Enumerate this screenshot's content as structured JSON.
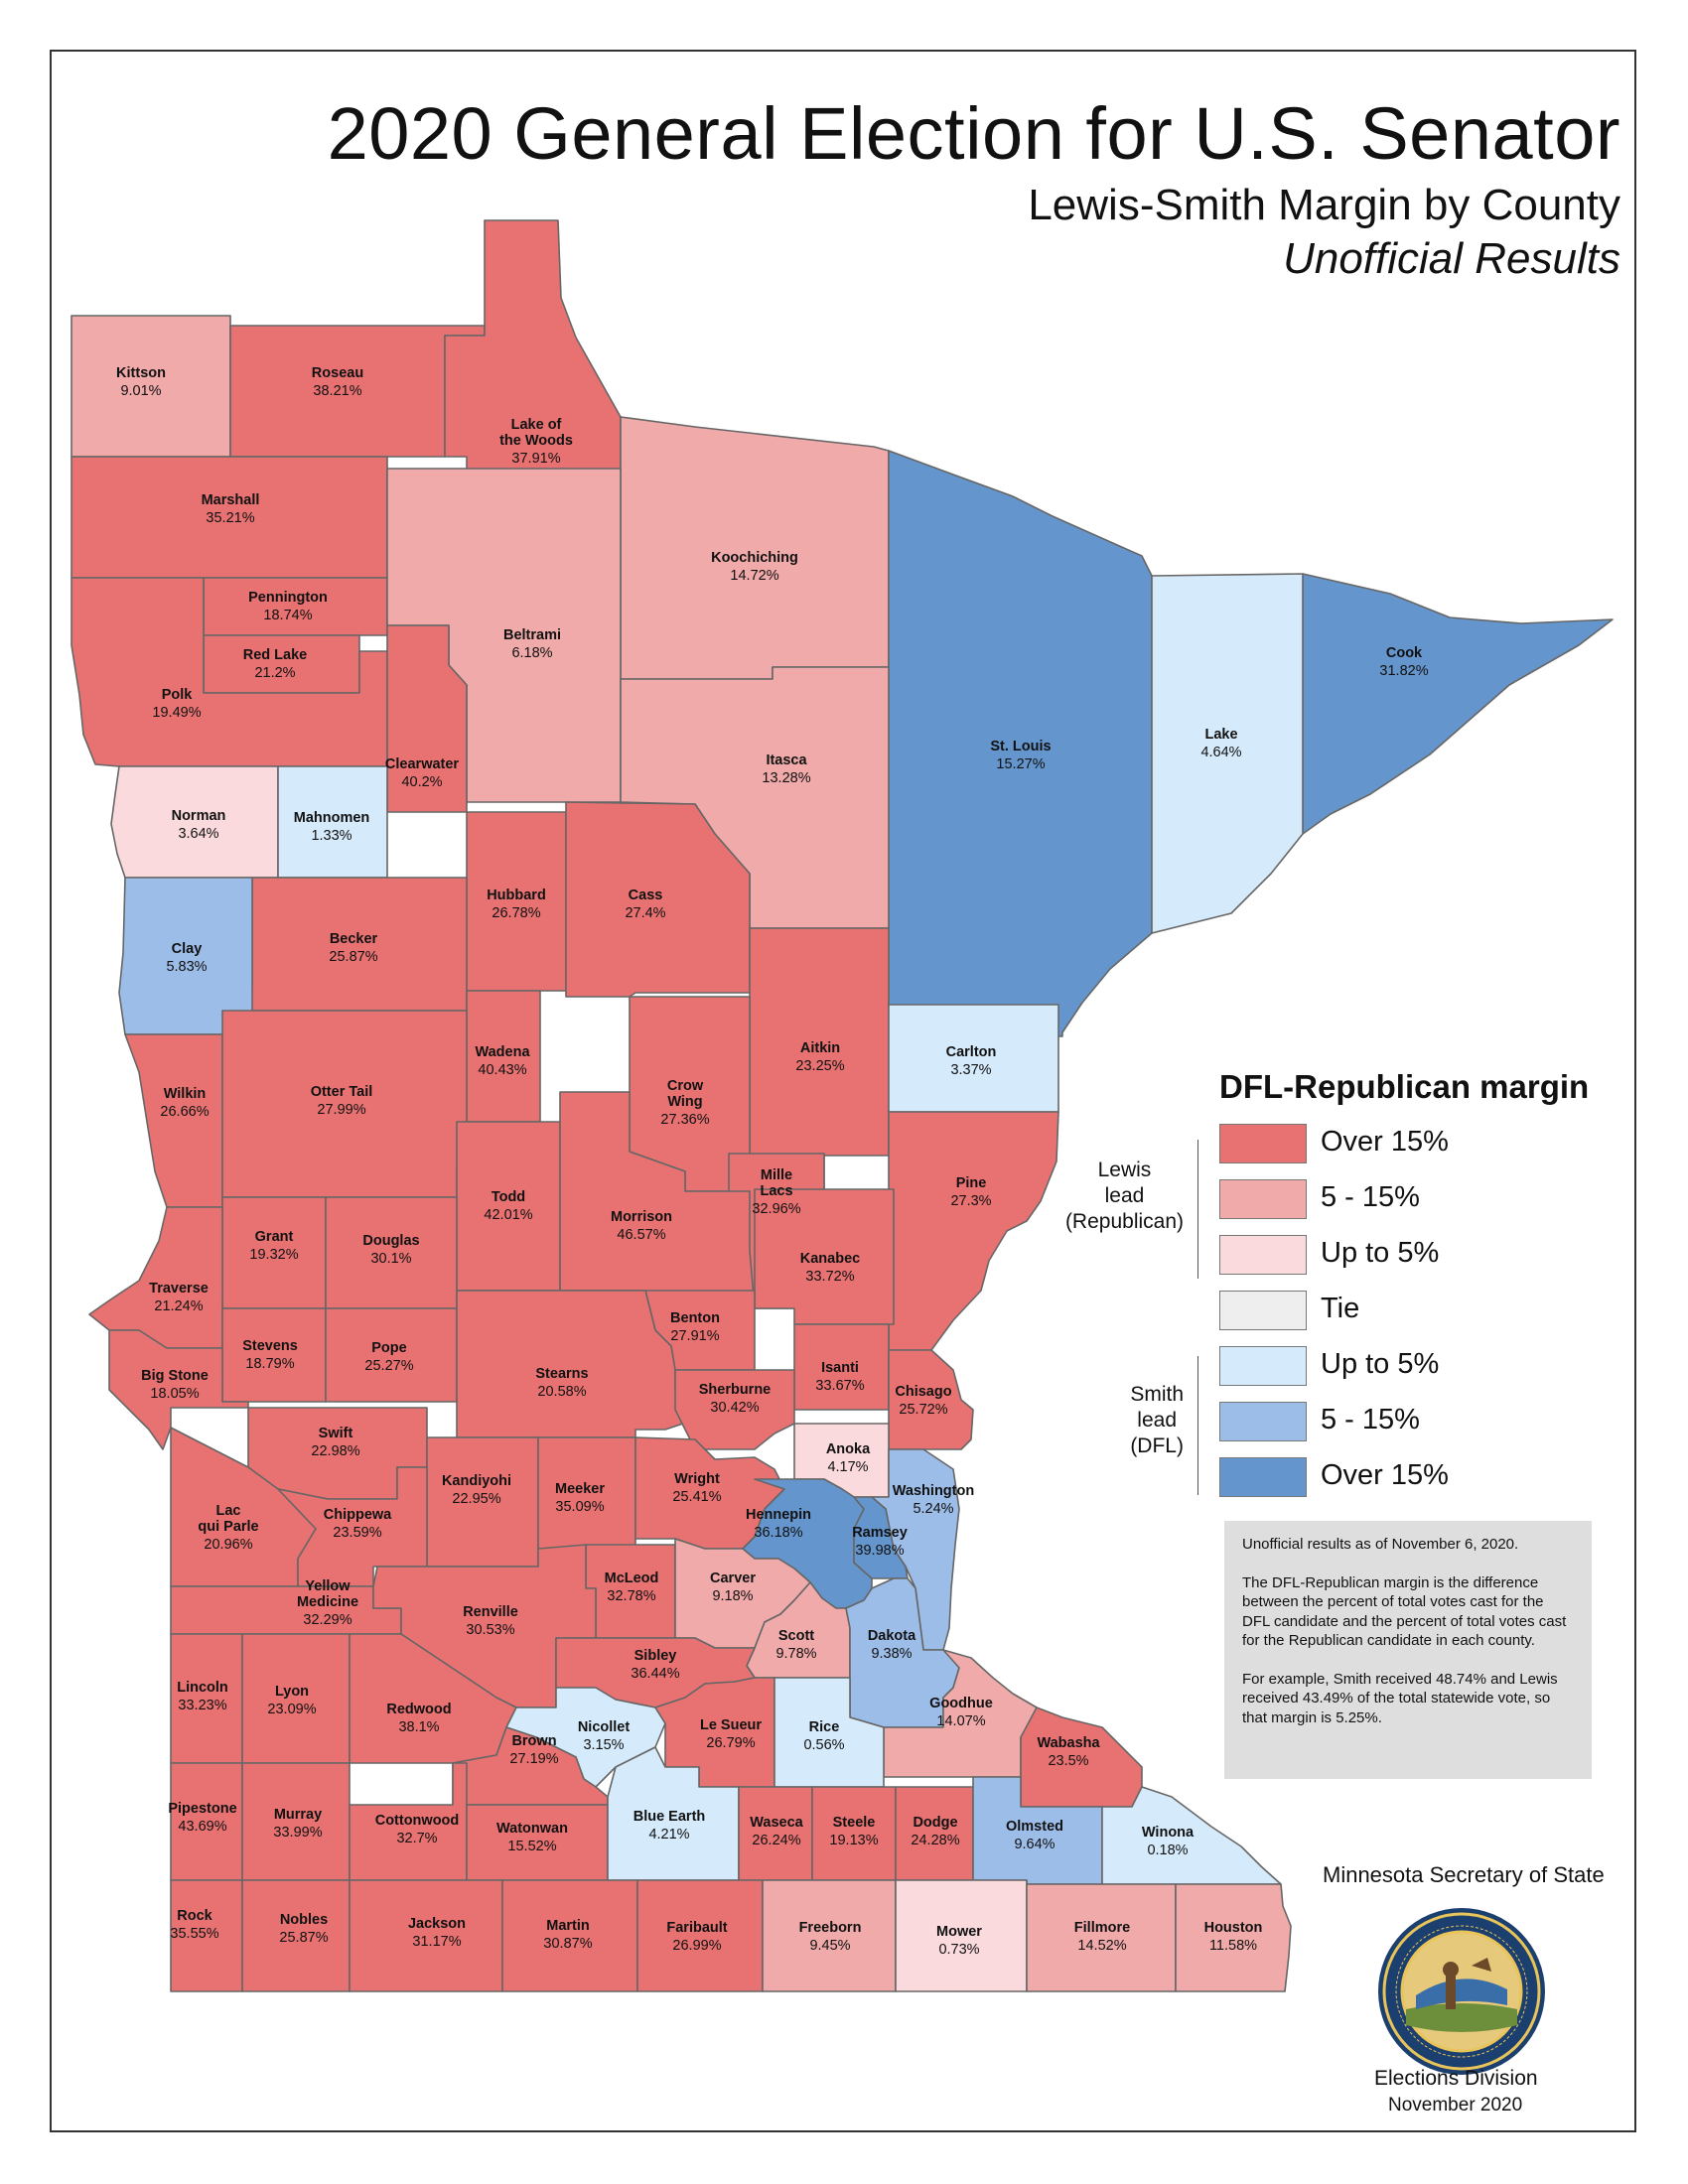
{
  "header": {
    "title": "2020 General Election for U.S. Senator",
    "subtitle": "Lewis-Smith Margin by County",
    "subtitle2": "Unofficial Results"
  },
  "colors": {
    "rep_over15": "#e87272",
    "rep_5_15": "#f0aaaa",
    "rep_upto5": "#fadadd",
    "tie": "#eeeeee",
    "dem_upto5": "#d5eafb",
    "dem_5_15": "#9dbde9",
    "dem_over15": "#6495cc"
  },
  "legend": {
    "title": "DFL-Republican margin",
    "rep_group": [
      "Lewis",
      "lead",
      "(Republican)"
    ],
    "dem_group": [
      "Smith",
      "lead",
      "(DFL)"
    ],
    "items": [
      {
        "label": "Over 15%",
        "color": "#e87272"
      },
      {
        "label": "5 - 15%",
        "color": "#f0aaaa"
      },
      {
        "label": "Up to 5%",
        "color": "#fadadd"
      },
      {
        "label": "Tie",
        "color": "#eeeeee"
      },
      {
        "label": "Up to 5%",
        "color": "#d5eafb"
      },
      {
        "label": "5 - 15%",
        "color": "#9dbde9"
      },
      {
        "label": "Over 15%",
        "color": "#6495cc"
      }
    ]
  },
  "note": {
    "p1": "Unofficial results as of November 6, 2020.",
    "p2": "The DFL-Republican margin is the difference between the percent of total votes cast for the DFL candidate and the percent of total votes cast for the Republican candidate in each county.",
    "p3": "For example, Smith received 48.74% and Lewis received 43.49% of the total statewide vote, so that margin is 5.25%."
  },
  "footer": {
    "agency": "Minnesota Secretary of State",
    "division": "Elections Division",
    "date": "November 2020",
    "seal_text": "THE GREAT SEAL OF THE STATE OF MINNESOTA",
    "seal_motto": "L'ETOILE DU NORD",
    "seal_year": "1858"
  },
  "counties": [
    {
      "name": "Kittson",
      "margin": "9.01%",
      "lead": "Republican",
      "band": "rep_5_15"
    },
    {
      "name": "Roseau",
      "margin": "38.21%",
      "lead": "Republican",
      "band": "rep_over15"
    },
    {
      "name": "Lake of the Woods",
      "label_lines": [
        "Lake of",
        "the Woods"
      ],
      "margin": "37.91%",
      "lead": "Republican",
      "band": "rep_over15"
    },
    {
      "name": "Marshall",
      "margin": "35.21%",
      "lead": "Republican",
      "band": "rep_over15"
    },
    {
      "name": "Koochiching",
      "margin": "14.72%",
      "lead": "Republican",
      "band": "rep_5_15"
    },
    {
      "name": "Pennington",
      "margin": "18.74%",
      "lead": "Republican",
      "band": "rep_over15"
    },
    {
      "name": "Beltrami",
      "margin": "6.18%",
      "lead": "Republican",
      "band": "rep_5_15"
    },
    {
      "name": "Red Lake",
      "margin": "21.2%",
      "lead": "Republican",
      "band": "rep_over15"
    },
    {
      "name": "Cook",
      "margin": "31.82%",
      "lead": "DFL",
      "band": "dem_over15"
    },
    {
      "name": "Polk",
      "margin": "19.49%",
      "lead": "Republican",
      "band": "rep_over15"
    },
    {
      "name": "St. Louis",
      "margin": "15.27%",
      "lead": "DFL",
      "band": "dem_over15"
    },
    {
      "name": "Lake",
      "margin": "4.64%",
      "lead": "DFL",
      "band": "dem_upto5"
    },
    {
      "name": "Itasca",
      "margin": "13.28%",
      "lead": "Republican",
      "band": "rep_5_15"
    },
    {
      "name": "Clearwater",
      "margin": "40.2%",
      "lead": "Republican",
      "band": "rep_over15"
    },
    {
      "name": "Norman",
      "margin": "3.64%",
      "lead": "Republican",
      "band": "rep_upto5"
    },
    {
      "name": "Mahnomen",
      "margin": "1.33%",
      "lead": "DFL",
      "band": "dem_upto5"
    },
    {
      "name": "Hubbard",
      "margin": "26.78%",
      "lead": "Republican",
      "band": "rep_over15"
    },
    {
      "name": "Cass",
      "margin": "27.4%",
      "lead": "Republican",
      "band": "rep_over15"
    },
    {
      "name": "Becker",
      "margin": "25.87%",
      "lead": "Republican",
      "band": "rep_over15"
    },
    {
      "name": "Clay",
      "margin": "5.83%",
      "lead": "DFL",
      "band": "dem_5_15"
    },
    {
      "name": "Aitkin",
      "margin": "23.25%",
      "lead": "Republican",
      "band": "rep_over15"
    },
    {
      "name": "Wadena",
      "margin": "40.43%",
      "lead": "Republican",
      "band": "rep_over15"
    },
    {
      "name": "Carlton",
      "margin": "3.37%",
      "lead": "DFL",
      "band": "dem_upto5"
    },
    {
      "name": "Crow Wing",
      "label_lines": [
        "Crow",
        "Wing"
      ],
      "margin": "27.36%",
      "lead": "Republican",
      "band": "rep_over15"
    },
    {
      "name": "Wilkin",
      "margin": "26.66%",
      "lead": "Republican",
      "band": "rep_over15"
    },
    {
      "name": "Otter Tail",
      "margin": "27.99%",
      "lead": "Republican",
      "band": "rep_over15"
    },
    {
      "name": "Mille Lacs",
      "label_lines": [
        "Mille",
        "Lacs"
      ],
      "margin": "32.96%",
      "lead": "Republican",
      "band": "rep_over15"
    },
    {
      "name": "Pine",
      "margin": "27.3%",
      "lead": "Republican",
      "band": "rep_over15"
    },
    {
      "name": "Todd",
      "margin": "42.01%",
      "lead": "Republican",
      "band": "rep_over15"
    },
    {
      "name": "Morrison",
      "margin": "46.57%",
      "lead": "Republican",
      "band": "rep_over15"
    },
    {
      "name": "Grant",
      "margin": "19.32%",
      "lead": "Republican",
      "band": "rep_over15"
    },
    {
      "name": "Douglas",
      "margin": "30.1%",
      "lead": "Republican",
      "band": "rep_over15"
    },
    {
      "name": "Kanabec",
      "margin": "33.72%",
      "lead": "Republican",
      "band": "rep_over15"
    },
    {
      "name": "Traverse",
      "margin": "21.24%",
      "lead": "Republican",
      "band": "rep_over15"
    },
    {
      "name": "Benton",
      "margin": "27.91%",
      "lead": "Republican",
      "band": "rep_over15"
    },
    {
      "name": "Stevens",
      "margin": "18.79%",
      "lead": "Republican",
      "band": "rep_over15"
    },
    {
      "name": "Pope",
      "margin": "25.27%",
      "lead": "Republican",
      "band": "rep_over15"
    },
    {
      "name": "Stearns",
      "margin": "20.58%",
      "lead": "Republican",
      "band": "rep_over15"
    },
    {
      "name": "Isanti",
      "margin": "33.67%",
      "lead": "Republican",
      "band": "rep_over15"
    },
    {
      "name": "Big Stone",
      "margin": "18.05%",
      "lead": "Republican",
      "band": "rep_over15"
    },
    {
      "name": "Sherburne",
      "margin": "30.42%",
      "lead": "Republican",
      "band": "rep_over15"
    },
    {
      "name": "Chisago",
      "margin": "25.72%",
      "lead": "Republican",
      "band": "rep_over15"
    },
    {
      "name": "Swift",
      "margin": "22.98%",
      "lead": "Republican",
      "band": "rep_over15"
    },
    {
      "name": "Anoka",
      "margin": "4.17%",
      "lead": "Republican",
      "band": "rep_upto5"
    },
    {
      "name": "Kandiyohi",
      "margin": "22.95%",
      "lead": "Republican",
      "band": "rep_over15"
    },
    {
      "name": "Meeker",
      "margin": "35.09%",
      "lead": "Republican",
      "band": "rep_over15"
    },
    {
      "name": "Wright",
      "margin": "25.41%",
      "lead": "Republican",
      "band": "rep_over15"
    },
    {
      "name": "Washington",
      "margin": "5.24%",
      "lead": "DFL",
      "band": "dem_5_15"
    },
    {
      "name": "Lac qui Parle",
      "label_lines": [
        "Lac",
        "qui Parle"
      ],
      "margin": "20.96%",
      "lead": "Republican",
      "band": "rep_over15"
    },
    {
      "name": "Chippewa",
      "margin": "23.59%",
      "lead": "Republican",
      "band": "rep_over15"
    },
    {
      "name": "Hennepin",
      "margin": "36.18%",
      "lead": "DFL",
      "band": "dem_over15"
    },
    {
      "name": "Ramsey",
      "margin": "39.98%",
      "lead": "DFL",
      "band": "dem_over15"
    },
    {
      "name": "McLeod",
      "margin": "32.78%",
      "lead": "Republican",
      "band": "rep_over15"
    },
    {
      "name": "Carver",
      "margin": "9.18%",
      "lead": "Republican",
      "band": "rep_5_15"
    },
    {
      "name": "Yellow Medicine",
      "label_lines": [
        "Yellow",
        "Medicine"
      ],
      "margin": "32.29%",
      "lead": "Republican",
      "band": "rep_over15"
    },
    {
      "name": "Renville",
      "margin": "30.53%",
      "lead": "Republican",
      "band": "rep_over15"
    },
    {
      "name": "Scott",
      "margin": "9.78%",
      "lead": "Republican",
      "band": "rep_5_15"
    },
    {
      "name": "Dakota",
      "margin": "9.38%",
      "lead": "DFL",
      "band": "dem_5_15"
    },
    {
      "name": "Sibley",
      "margin": "36.44%",
      "lead": "Republican",
      "band": "rep_over15"
    },
    {
      "name": "Lincoln",
      "margin": "33.23%",
      "lead": "Republican",
      "band": "rep_over15"
    },
    {
      "name": "Lyon",
      "margin": "23.09%",
      "lead": "Republican",
      "band": "rep_over15"
    },
    {
      "name": "Redwood",
      "margin": "38.1%",
      "lead": "Republican",
      "band": "rep_over15"
    },
    {
      "name": "Goodhue",
      "margin": "14.07%",
      "lead": "Republican",
      "band": "rep_5_15"
    },
    {
      "name": "Nicollet",
      "margin": "3.15%",
      "lead": "DFL",
      "band": "dem_upto5"
    },
    {
      "name": "Le Sueur",
      "margin": "26.79%",
      "lead": "Republican",
      "band": "rep_over15"
    },
    {
      "name": "Rice",
      "margin": "0.56%",
      "lead": "DFL",
      "band": "dem_upto5"
    },
    {
      "name": "Brown",
      "margin": "27.19%",
      "lead": "Republican",
      "band": "rep_over15"
    },
    {
      "name": "Wabasha",
      "margin": "23.5%",
      "lead": "Republican",
      "band": "rep_over15"
    },
    {
      "name": "Pipestone",
      "margin": "43.69%",
      "lead": "Republican",
      "band": "rep_over15"
    },
    {
      "name": "Murray",
      "margin": "33.99%",
      "lead": "Republican",
      "band": "rep_over15"
    },
    {
      "name": "Cottonwood",
      "margin": "32.7%",
      "lead": "Republican",
      "band": "rep_over15"
    },
    {
      "name": "Watonwan",
      "margin": "15.52%",
      "lead": "Republican",
      "band": "rep_over15"
    },
    {
      "name": "Blue Earth",
      "margin": "4.21%",
      "lead": "DFL",
      "band": "dem_upto5"
    },
    {
      "name": "Waseca",
      "margin": "26.24%",
      "lead": "Republican",
      "band": "rep_over15"
    },
    {
      "name": "Steele",
      "margin": "19.13%",
      "lead": "Republican",
      "band": "rep_over15"
    },
    {
      "name": "Dodge",
      "margin": "24.28%",
      "lead": "Republican",
      "band": "rep_over15"
    },
    {
      "name": "Olmsted",
      "margin": "9.64%",
      "lead": "DFL",
      "band": "dem_5_15"
    },
    {
      "name": "Winona",
      "margin": "0.18%",
      "lead": "DFL",
      "band": "dem_upto5"
    },
    {
      "name": "Rock",
      "margin": "35.55%",
      "lead": "Republican",
      "band": "rep_over15"
    },
    {
      "name": "Nobles",
      "margin": "25.87%",
      "lead": "Republican",
      "band": "rep_over15"
    },
    {
      "name": "Jackson",
      "margin": "31.17%",
      "lead": "Republican",
      "band": "rep_over15"
    },
    {
      "name": "Martin",
      "margin": "30.87%",
      "lead": "Republican",
      "band": "rep_over15"
    },
    {
      "name": "Faribault",
      "margin": "26.99%",
      "lead": "Republican",
      "band": "rep_over15"
    },
    {
      "name": "Freeborn",
      "margin": "9.45%",
      "lead": "Republican",
      "band": "rep_5_15"
    },
    {
      "name": "Mower",
      "margin": "0.73%",
      "lead": "Republican",
      "band": "rep_upto5"
    },
    {
      "name": "Fillmore",
      "margin": "14.52%",
      "lead": "Republican",
      "band": "rep_5_15"
    },
    {
      "name": "Houston",
      "margin": "11.58%",
      "lead": "Republican",
      "band": "rep_5_15"
    }
  ]
}
